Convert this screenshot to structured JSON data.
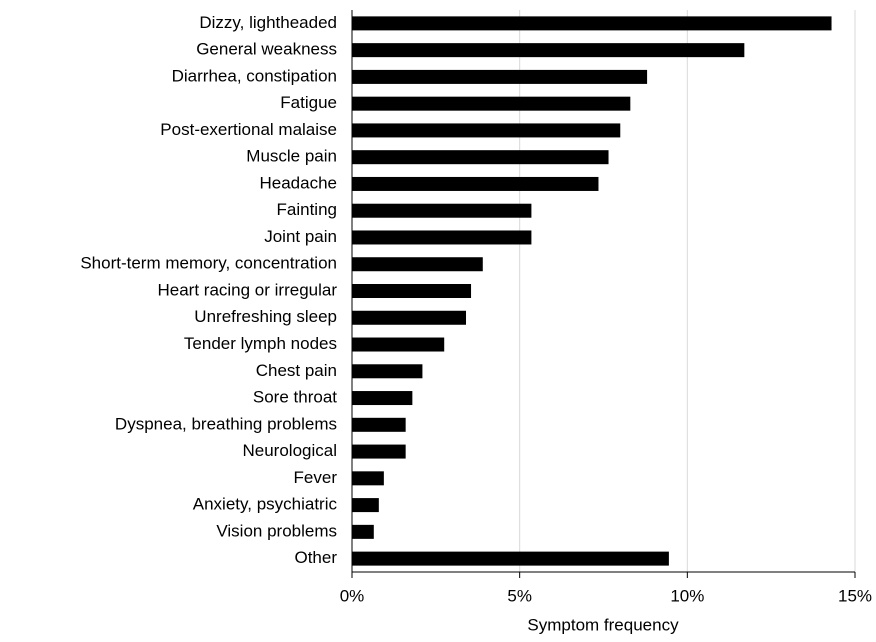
{
  "chart_data": {
    "type": "barh",
    "xlabel": "Symptom frequency",
    "categories": [
      "Dizzy, lightheaded",
      "General weakness",
      "Diarrhea, constipation",
      "Fatigue",
      "Post-exertional malaise",
      "Muscle pain",
      "Headache",
      "Fainting",
      "Joint pain",
      "Short-term memory, concentration",
      "Heart racing or irregular",
      "Unrefreshing sleep",
      "Tender lymph nodes",
      "Chest pain",
      "Sore throat",
      "Dyspnea, breathing problems",
      "Neurological",
      "Fever",
      "Anxiety, psychiatric",
      "Vision problems",
      "Other"
    ],
    "values": [
      14.3,
      11.7,
      8.8,
      8.3,
      8.0,
      7.65,
      7.35,
      5.35,
      5.35,
      3.9,
      3.55,
      3.4,
      2.75,
      2.1,
      1.8,
      1.6,
      1.6,
      0.95,
      0.8,
      0.65,
      9.45
    ],
    "color": "#000000",
    "xlim": [
      0,
      15
    ],
    "xticks": [
      {
        "value": 0,
        "label": "0%"
      },
      {
        "value": 5,
        "label": "5%"
      },
      {
        "value": 10,
        "label": "10%"
      },
      {
        "value": 15,
        "label": "15%"
      }
    ],
    "grid": true
  }
}
